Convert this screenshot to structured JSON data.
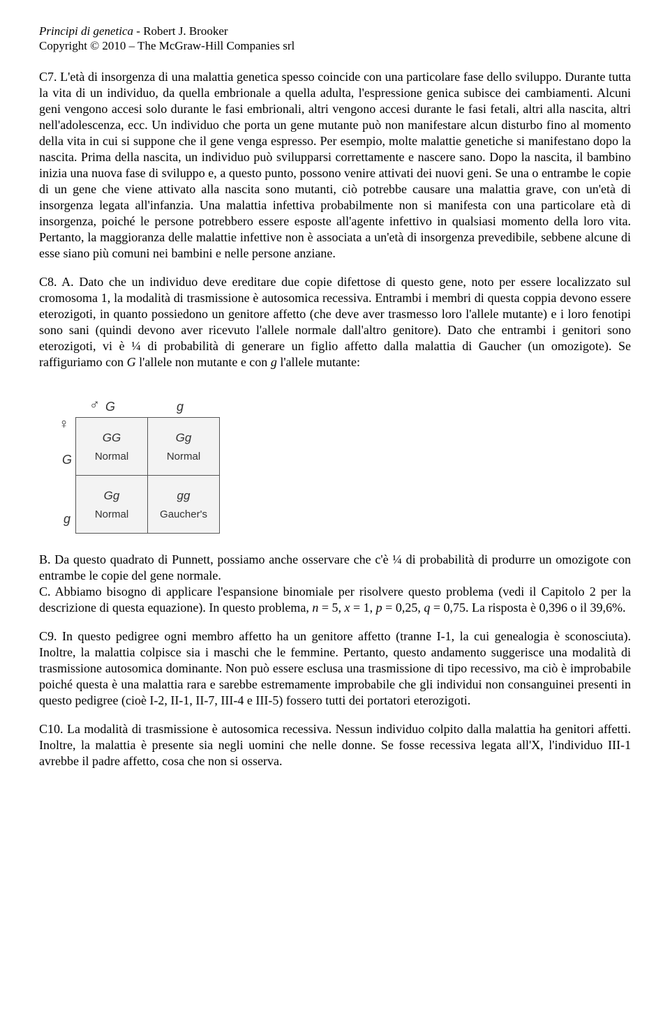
{
  "header": {
    "book_title": "Principi di genetica",
    "author": " - Robert J. Brooker",
    "copyright": "Copyright © 2010 – The McGraw-Hill Companies srl"
  },
  "c7": {
    "text": "C7. L'età di insorgenza di una malattia genetica spesso coincide con una particolare fase dello sviluppo. Durante tutta la vita di un individuo, da quella embrionale a quella adulta, l'espressione genica subisce dei cambiamenti. Alcuni geni vengono accesi solo durante le fasi embrionali, altri vengono accesi durante le fasi fetali, altri alla nascita, altri nell'adolescenza, ecc. Un individuo che porta un gene mutante può non manifestare alcun disturbo fino al momento della vita in cui si suppone che il gene venga espresso. Per esempio, molte malattie genetiche si manifestano dopo la nascita. Prima della nascita, un individuo può svilupparsi correttamente e nascere sano. Dopo la nascita, il bambino inizia una nuova fase di sviluppo e, a questo punto, possono venire attivati dei nuovi geni. Se una o entrambe le copie di un gene che viene attivato alla nascita sono mutanti, ciò potrebbe causare una malattia grave, con un'età di insorgenza legata all'infanzia. Una malattia infettiva probabilmente non si manifesta con una particolare età di insorgenza, poiché le persone potrebbero essere esposte all'agente infettivo in qualsiasi momento della loro vita. Pertanto, la maggioranza delle malattie infettive non è associata a un'età di insorgenza prevedibile, sebbene alcune di esse siano più comuni nei bambini e nelle persone anziane."
  },
  "c8a": {
    "prefix": "C8. A. Dato che un individuo deve ereditare due copie difettose di questo gene, noto per essere localizzato sul cromosoma 1, la modalità di trasmissione è autosomica recessiva. Entrambi i membri di questa coppia devono essere eterozigoti, in quanto possiedono un genitore affetto (che deve aver trasmesso loro l'allele mutante) e i loro fenotipi sono sani (quindi devono aver ricevuto l'allele normale dall'altro genitore). Dato che entrambi i genitori sono eterozigoti, vi è ¼ di probabilità di generare un figlio affetto dalla malattia di Gaucher (un omozigote). Se raffiguriamo con ",
    "g_upper": "G",
    "mid1": " l'allele non mutante e con ",
    "g_lower": "g",
    "suffix": " l'allele mutante:"
  },
  "punnett": {
    "male_symbol": "♂",
    "female_symbol": "♀",
    "col_headers": [
      "G",
      "g"
    ],
    "row_labels": [
      "G",
      "g"
    ],
    "cells": [
      [
        {
          "gt": "GG",
          "ph": "Normal"
        },
        {
          "gt": "Gg",
          "ph": "Normal"
        }
      ],
      [
        {
          "gt": "Gg",
          "ph": "Normal"
        },
        {
          "gt": "gg",
          "ph": "Gaucher's"
        }
      ]
    ]
  },
  "c8b": {
    "text": "B. Da questo quadrato di Punnett, possiamo anche osservare che c'è ¼ di probabilità di produrre un omozigote con entrambe le copie del gene normale."
  },
  "c8c": {
    "prefix": "C. Abbiamo bisogno di applicare l'espansione binomiale per risolvere questo problema (vedi il Capitolo 2 per la descrizione di questa equazione). In questo problema, ",
    "n_lbl": "n",
    "n_eq": " = 5, ",
    "x_lbl": "x",
    "x_eq": " = 1, ",
    "p_lbl": "p",
    "p_eq": " = 0,25, ",
    "q_lbl": "q",
    "q_eq": " = 0,75. La risposta è 0,396 o il 39,6%."
  },
  "c9": {
    "text": "C9. In questo pedigree ogni membro affetto ha un genitore affetto (tranne I-1, la cui genealogia è sconosciuta). Inoltre, la malattia colpisce sia i maschi che le femmine. Pertanto, questo andamento suggerisce una modalità di trasmissione autosomica dominante. Non può essere esclusa una trasmissione di tipo recessivo, ma ciò è improbabile poiché questa è una malattia rara e sarebbe estremamente improbabile che gli individui non consanguinei presenti in questo pedigree (cioè I-2, II-1, II-7, III-4 e III-5) fossero tutti dei portatori eterozigoti."
  },
  "c10": {
    "text": "C10. La modalità di trasmissione è autosomica recessiva. Nessun individuo colpito dalla malattia ha genitori affetti. Inoltre, la malattia è presente sia negli uomini che nelle donne. Se fosse recessiva legata all'X, l'individuo III-1 avrebbe il padre affetto, cosa che non si osserva."
  }
}
